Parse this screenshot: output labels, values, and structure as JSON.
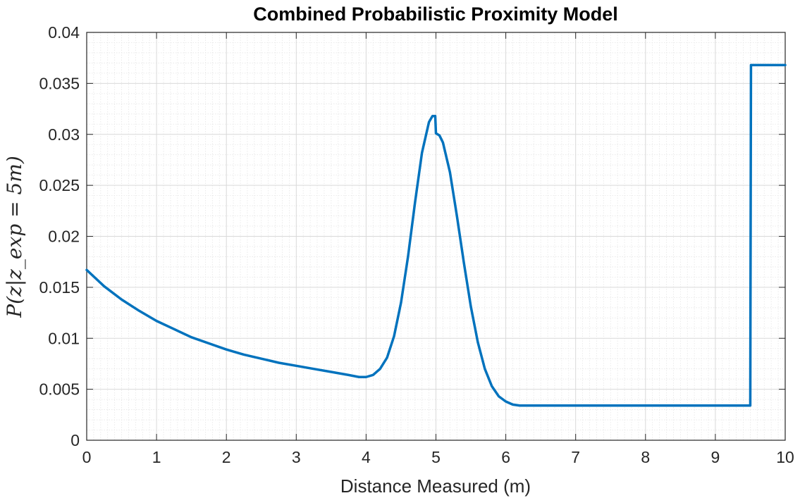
{
  "chart_data": {
    "type": "line",
    "title": "Combined Probabilistic Proximity Model",
    "xlabel": "Distance Measured (m)",
    "ylabel": "P(z|z_exp = 5m)",
    "xlim": [
      0,
      10
    ],
    "ylim": [
      0,
      0.04
    ],
    "xticks": [
      "0",
      "1",
      "2",
      "3",
      "4",
      "5",
      "6",
      "7",
      "8",
      "9",
      "10"
    ],
    "yticks": [
      "0",
      "0.005",
      "0.01",
      "0.015",
      "0.02",
      "0.025",
      "0.03",
      "0.035",
      "0.04"
    ],
    "grid": true,
    "minor_grid": true,
    "line_color": "#0072BD",
    "series": [
      {
        "x": [
          0,
          0.25,
          0.5,
          0.75,
          1.0,
          1.25,
          1.5,
          1.75,
          2.0,
          2.25,
          2.5,
          2.75,
          3.0,
          3.25,
          3.5,
          3.75,
          3.9,
          4.0,
          4.1,
          4.2,
          4.3,
          4.4,
          4.5,
          4.6,
          4.7,
          4.8,
          4.9,
          4.95,
          4.99,
          5.0,
          5.05,
          5.1,
          5.2,
          5.3,
          5.4,
          5.5,
          5.6,
          5.7,
          5.8,
          5.9,
          6.0,
          6.1,
          6.2,
          6.5,
          7.0,
          8.0,
          9.0,
          9.5,
          9.51,
          10.0
        ],
        "y": [
          0.0167,
          0.0151,
          0.0138,
          0.0127,
          0.0117,
          0.0109,
          0.0101,
          0.0095,
          0.0089,
          0.0084,
          0.008,
          0.0076,
          0.0073,
          0.007,
          0.0067,
          0.0064,
          0.0062,
          0.0062,
          0.0064,
          0.007,
          0.0081,
          0.0102,
          0.0135,
          0.018,
          0.0233,
          0.0282,
          0.0312,
          0.0318,
          0.0318,
          0.0301,
          0.0299,
          0.0292,
          0.0263,
          0.022,
          0.0174,
          0.0131,
          0.0096,
          0.007,
          0.0053,
          0.0043,
          0.0038,
          0.0035,
          0.0034,
          0.0034,
          0.0034,
          0.0034,
          0.0034,
          0.0034,
          0.0368,
          0.0368
        ]
      }
    ]
  }
}
